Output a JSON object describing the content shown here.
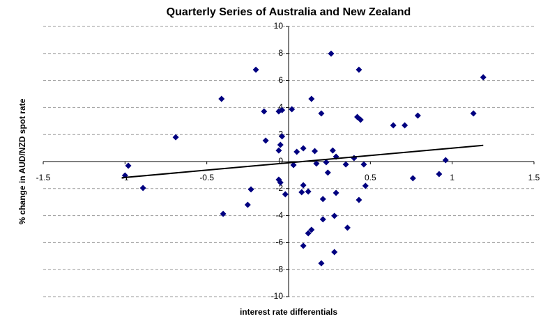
{
  "chart_data": {
    "type": "scatter",
    "title": "Quarterly Series of Australia and New Zealand",
    "x_label": "interest rate differentials",
    "y_label": "% change in AUD/NZD spot rate",
    "color": "#000080",
    "xlim": [
      -1.5,
      1.5
    ],
    "xticks": [
      -1.5,
      -1,
      -0.5,
      0.5,
      1,
      1.5
    ],
    "ylim": [
      -10,
      10
    ],
    "yticks": [
      -10,
      -8,
      -6,
      -4,
      -2,
      0,
      2,
      4,
      6,
      8,
      10
    ],
    "grid": true,
    "x": [
      -1.0,
      -0.98,
      -0.89,
      -0.69,
      -0.41,
      -0.4,
      -0.25,
      -0.23,
      -0.2,
      -0.15,
      -0.14,
      -0.06,
      -0.06,
      -0.05,
      -0.04,
      -0.04,
      -0.06,
      -0.05,
      -0.02,
      0.02,
      0.03,
      0.05,
      0.08,
      0.09,
      0.09,
      0.09,
      0.12,
      0.12,
      0.14,
      0.14,
      0.16,
      0.17,
      0.2,
      0.2,
      0.21,
      0.21,
      0.23,
      0.24,
      0.26,
      0.27,
      0.28,
      0.28,
      0.29,
      0.29,
      0.35,
      0.36,
      0.4,
      0.42,
      0.43,
      0.43,
      0.44,
      0.47,
      0.46,
      0.64,
      0.71,
      0.79,
      0.76,
      0.92,
      0.96,
      1.13,
      1.19
    ],
    "values": [
      -1.03,
      -0.31,
      -1.96,
      1.8,
      4.64,
      -3.87,
      -3.2,
      -2.06,
      6.8,
      3.71,
      1.55,
      3.71,
      0.82,
      1.24,
      3.81,
      1.86,
      -1.34,
      -1.55,
      -2.42,
      3.87,
      -0.26,
      0.72,
      -2.27,
      0.98,
      -1.75,
      -6.24,
      -2.22,
      -5.31,
      -5.05,
      4.64,
      0.77,
      -0.15,
      3.56,
      -7.53,
      -2.78,
      -4.28,
      -0.05,
      -0.82,
      7.99,
      0.82,
      -4.02,
      -6.7,
      0.36,
      -2.32,
      -0.21,
      -4.9,
      0.26,
      3.3,
      6.8,
      -2.84,
      3.09,
      -1.8,
      -0.21,
      2.68,
      2.68,
      3.4,
      -1.24,
      -0.93,
      0.1,
      3.56,
      6.24
    ],
    "trendline": {
      "x": [
        -1.02,
        1.19
      ],
      "y": [
        -1.2,
        1.2
      ],
      "color": "#000000"
    }
  }
}
